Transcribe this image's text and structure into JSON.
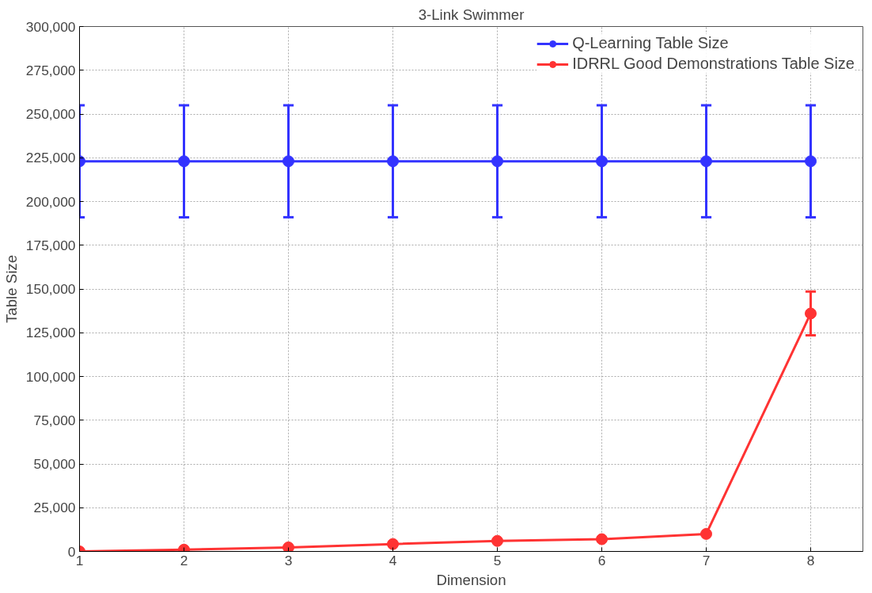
{
  "chart_data": {
    "type": "line",
    "title": "3-Link Swimmer",
    "xlabel": "Dimension",
    "ylabel": "Table Size",
    "x": [
      1,
      2,
      3,
      4,
      5,
      6,
      7,
      8
    ],
    "series": [
      {
        "name": "Q-Learning Table Size",
        "color": "#3333ff",
        "values": [
          223000,
          223000,
          223000,
          223000,
          223000,
          223000,
          223000,
          223000
        ],
        "errors": [
          [
            191000,
            255000
          ],
          [
            191000,
            255000
          ],
          [
            191000,
            255000
          ],
          [
            191000,
            255000
          ],
          [
            191000,
            255000
          ],
          [
            191000,
            255000
          ],
          [
            191000,
            255000
          ],
          [
            191000,
            255000
          ]
        ]
      },
      {
        "name": "IDRRL Good Demonstrations Table Size",
        "color": "#ff3333",
        "values": [
          0,
          1000,
          2300,
          4200,
          6000,
          7000,
          10000,
          136000
        ],
        "errors": [
          null,
          null,
          null,
          null,
          null,
          null,
          null,
          [
            123500,
            148500
          ]
        ]
      }
    ],
    "xlim": [
      1,
      8.5
    ],
    "xticks": [
      1,
      2,
      3,
      4,
      5,
      6,
      7,
      8
    ],
    "ylim": [
      0,
      300000
    ],
    "yticks": [
      {
        "value": 0,
        "label": "0"
      },
      {
        "value": 25000,
        "label": "25,000"
      },
      {
        "value": 50000,
        "label": "50,000"
      },
      {
        "value": 75000,
        "label": "75,000"
      },
      {
        "value": 100000,
        "label": "100,000"
      },
      {
        "value": 125000,
        "label": "125,000"
      },
      {
        "value": 150000,
        "label": "150,000"
      },
      {
        "value": 175000,
        "label": "175,000"
      },
      {
        "value": 200000,
        "label": "200,000"
      },
      {
        "value": 225000,
        "label": "225,000"
      },
      {
        "value": 250000,
        "label": "250,000"
      },
      {
        "value": 275000,
        "label": "275,000"
      },
      {
        "value": 300000,
        "label": "300,000"
      }
    ],
    "grid": true,
    "legend": "top right",
    "marker": "circle",
    "line_style": "solid"
  }
}
